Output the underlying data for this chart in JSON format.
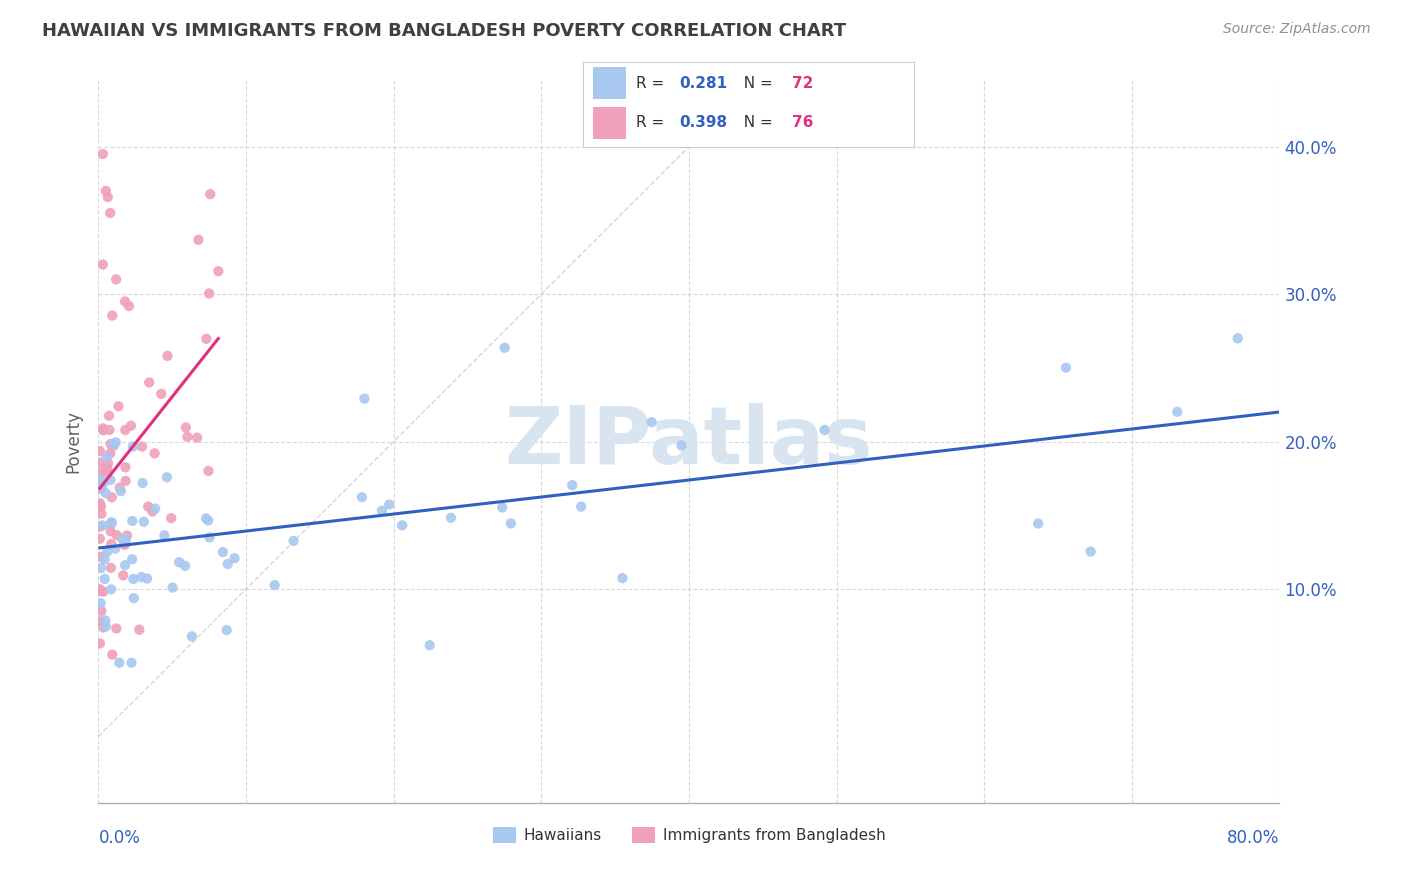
{
  "title": "HAWAIIAN VS IMMIGRANTS FROM BANGLADESH POVERTY CORRELATION CHART",
  "source": "Source: ZipAtlas.com",
  "ylabel": "Poverty",
  "yticks": [
    "10.0%",
    "20.0%",
    "30.0%",
    "40.0%"
  ],
  "ytick_vals": [
    0.1,
    0.2,
    0.3,
    0.4
  ],
  "xlim": [
    0.0,
    0.8
  ],
  "ylim": [
    -0.045,
    0.445
  ],
  "r_hawaiian": 0.281,
  "n_hawaiian": 72,
  "r_bangladesh": 0.398,
  "n_bangladesh": 76,
  "color_hawaiian": "#a8c8f0",
  "color_bangladesh": "#f0a0b8",
  "line_color_hawaiian": "#3060c0",
  "line_color_bangladesh": "#e03080",
  "legend_r_color": "#3060c0",
  "legend_n_color": "#e03080",
  "watermark_color": "#d8e4f0",
  "background_color": "#ffffff",
  "grid_color": "#d0d0d0",
  "bottom_axis_color": "#b0b0b0",
  "xtick_color": "#3060c0",
  "ytick_color": "#3060c0",
  "title_color": "#404040",
  "source_color": "#909090",
  "ylabel_color": "#606060"
}
